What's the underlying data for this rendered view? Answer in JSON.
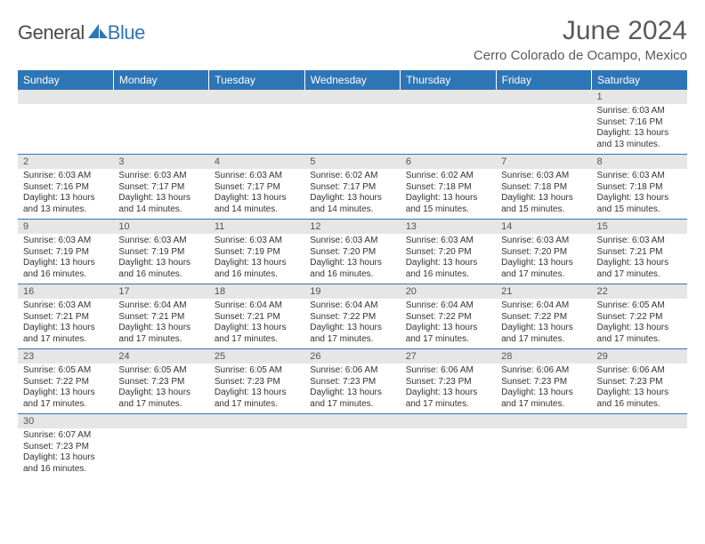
{
  "brand": {
    "general": "General",
    "blue": "Blue"
  },
  "title": "June 2024",
  "location": "Cerro Colorado de Ocampo, Mexico",
  "colors": {
    "header_bg": "#2e75b6",
    "header_text": "#ffffff",
    "daynum_bg": "#e6e6e6",
    "border": "#2e75b6",
    "title_text": "#5a5a5a",
    "body_text": "#333333"
  },
  "daysOfWeek": [
    "Sunday",
    "Monday",
    "Tuesday",
    "Wednesday",
    "Thursday",
    "Friday",
    "Saturday"
  ],
  "weeks": [
    [
      null,
      null,
      null,
      null,
      null,
      null,
      {
        "n": "1",
        "sr": "6:03 AM",
        "ss": "7:16 PM",
        "dl": "13 hours and 13 minutes."
      }
    ],
    [
      {
        "n": "2",
        "sr": "6:03 AM",
        "ss": "7:16 PM",
        "dl": "13 hours and 13 minutes."
      },
      {
        "n": "3",
        "sr": "6:03 AM",
        "ss": "7:17 PM",
        "dl": "13 hours and 14 minutes."
      },
      {
        "n": "4",
        "sr": "6:03 AM",
        "ss": "7:17 PM",
        "dl": "13 hours and 14 minutes."
      },
      {
        "n": "5",
        "sr": "6:02 AM",
        "ss": "7:17 PM",
        "dl": "13 hours and 14 minutes."
      },
      {
        "n": "6",
        "sr": "6:02 AM",
        "ss": "7:18 PM",
        "dl": "13 hours and 15 minutes."
      },
      {
        "n": "7",
        "sr": "6:03 AM",
        "ss": "7:18 PM",
        "dl": "13 hours and 15 minutes."
      },
      {
        "n": "8",
        "sr": "6:03 AM",
        "ss": "7:18 PM",
        "dl": "13 hours and 15 minutes."
      }
    ],
    [
      {
        "n": "9",
        "sr": "6:03 AM",
        "ss": "7:19 PM",
        "dl": "13 hours and 16 minutes."
      },
      {
        "n": "10",
        "sr": "6:03 AM",
        "ss": "7:19 PM",
        "dl": "13 hours and 16 minutes."
      },
      {
        "n": "11",
        "sr": "6:03 AM",
        "ss": "7:19 PM",
        "dl": "13 hours and 16 minutes."
      },
      {
        "n": "12",
        "sr": "6:03 AM",
        "ss": "7:20 PM",
        "dl": "13 hours and 16 minutes."
      },
      {
        "n": "13",
        "sr": "6:03 AM",
        "ss": "7:20 PM",
        "dl": "13 hours and 16 minutes."
      },
      {
        "n": "14",
        "sr": "6:03 AM",
        "ss": "7:20 PM",
        "dl": "13 hours and 17 minutes."
      },
      {
        "n": "15",
        "sr": "6:03 AM",
        "ss": "7:21 PM",
        "dl": "13 hours and 17 minutes."
      }
    ],
    [
      {
        "n": "16",
        "sr": "6:03 AM",
        "ss": "7:21 PM",
        "dl": "13 hours and 17 minutes."
      },
      {
        "n": "17",
        "sr": "6:04 AM",
        "ss": "7:21 PM",
        "dl": "13 hours and 17 minutes."
      },
      {
        "n": "18",
        "sr": "6:04 AM",
        "ss": "7:21 PM",
        "dl": "13 hours and 17 minutes."
      },
      {
        "n": "19",
        "sr": "6:04 AM",
        "ss": "7:22 PM",
        "dl": "13 hours and 17 minutes."
      },
      {
        "n": "20",
        "sr": "6:04 AM",
        "ss": "7:22 PM",
        "dl": "13 hours and 17 minutes."
      },
      {
        "n": "21",
        "sr": "6:04 AM",
        "ss": "7:22 PM",
        "dl": "13 hours and 17 minutes."
      },
      {
        "n": "22",
        "sr": "6:05 AM",
        "ss": "7:22 PM",
        "dl": "13 hours and 17 minutes."
      }
    ],
    [
      {
        "n": "23",
        "sr": "6:05 AM",
        "ss": "7:22 PM",
        "dl": "13 hours and 17 minutes."
      },
      {
        "n": "24",
        "sr": "6:05 AM",
        "ss": "7:23 PM",
        "dl": "13 hours and 17 minutes."
      },
      {
        "n": "25",
        "sr": "6:05 AM",
        "ss": "7:23 PM",
        "dl": "13 hours and 17 minutes."
      },
      {
        "n": "26",
        "sr": "6:06 AM",
        "ss": "7:23 PM",
        "dl": "13 hours and 17 minutes."
      },
      {
        "n": "27",
        "sr": "6:06 AM",
        "ss": "7:23 PM",
        "dl": "13 hours and 17 minutes."
      },
      {
        "n": "28",
        "sr": "6:06 AM",
        "ss": "7:23 PM",
        "dl": "13 hours and 17 minutes."
      },
      {
        "n": "29",
        "sr": "6:06 AM",
        "ss": "7:23 PM",
        "dl": "13 hours and 16 minutes."
      }
    ],
    [
      {
        "n": "30",
        "sr": "6:07 AM",
        "ss": "7:23 PM",
        "dl": "13 hours and 16 minutes."
      },
      null,
      null,
      null,
      null,
      null,
      null
    ]
  ],
  "labels": {
    "sunrise": "Sunrise: ",
    "sunset": "Sunset: ",
    "daylight": "Daylight: "
  }
}
